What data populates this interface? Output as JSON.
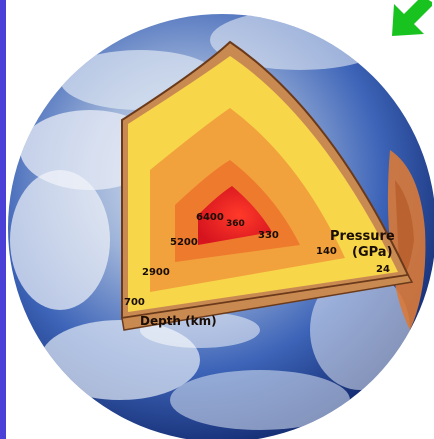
{
  "depth_label": "Depth (km)",
  "pressure_label_line1": "Pressure",
  "pressure_label_line2": "(GPa)",
  "depth_values": [
    "700",
    "2900",
    "5200",
    "6400"
  ],
  "pressure_values": [
    "24",
    "140",
    "330",
    "360"
  ],
  "colors": {
    "crust": "#c98a52",
    "mantle": "#f7d64a",
    "outer_mantle": "#f2a23c",
    "outer_core": "#ee7a2e",
    "inner_core": "#e8262a",
    "ocean": "#2f57b8",
    "frame": "#4a3fd6",
    "arrow": "#18c21f"
  },
  "icons": {
    "corner_arrow": "green-arrow-icon"
  }
}
